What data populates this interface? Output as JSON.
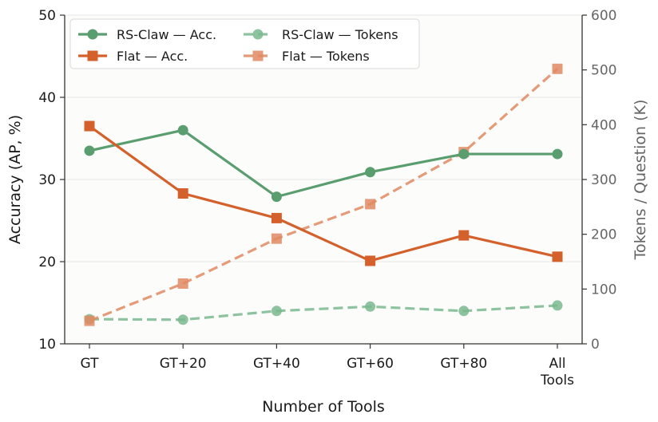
{
  "chart_data": {
    "type": "line",
    "xlabel": "Number of Tools",
    "ylabel_left": "Accuracy (AP, %)",
    "ylabel_right": "Tokens / Question (K)",
    "categories": [
      "GT",
      "GT+20",
      "GT+40",
      "GT+60",
      "GT+80",
      "All Tools"
    ],
    "category_lines": [
      [
        "GT"
      ],
      [
        "GT+20"
      ],
      [
        "GT+40"
      ],
      [
        "GT+60"
      ],
      [
        "GT+80"
      ],
      [
        "All",
        "Tools"
      ]
    ],
    "ylim_left": [
      10,
      50
    ],
    "yticks_left": [
      10,
      20,
      30,
      40,
      50
    ],
    "ylim_right": [
      0,
      600
    ],
    "yticks_right": [
      0,
      100,
      200,
      300,
      400,
      500,
      600
    ],
    "grid": "horizontal",
    "legend_position": "upper-left",
    "series": [
      {
        "name": "RS-Claw — Acc.",
        "axis": "left",
        "style": "solid",
        "marker": "circle",
        "color": "#5a9e6f",
        "values": [
          33.5,
          36.0,
          27.9,
          30.9,
          33.1,
          33.1
        ]
      },
      {
        "name": "Flat — Acc.",
        "axis": "left",
        "style": "solid",
        "marker": "square",
        "color": "#d4602b",
        "values": [
          36.5,
          28.3,
          25.3,
          20.1,
          23.2,
          20.6
        ]
      },
      {
        "name": "RS-Claw — Tokens",
        "axis": "right",
        "style": "dashed",
        "marker": "circle",
        "color": "#7ab88e",
        "values": [
          45,
          44,
          60,
          68,
          60,
          70
        ]
      },
      {
        "name": "Flat — Tokens",
        "axis": "right",
        "style": "dashed",
        "marker": "square",
        "color": "#e08a62",
        "values": [
          42,
          110,
          192,
          255,
          350,
          502
        ]
      }
    ]
  }
}
